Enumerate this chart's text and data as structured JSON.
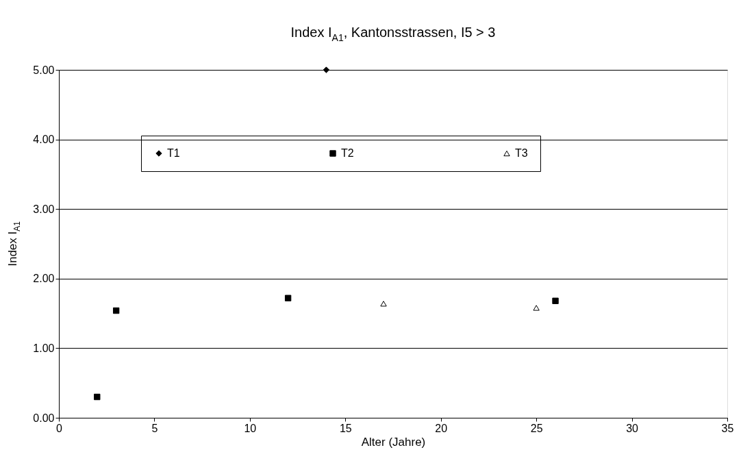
{
  "chart_data": {
    "type": "scatter",
    "title": "Index I$_{A1}$, Kantonsstrassen, I5 > 3",
    "xlabel": "Alter (Jahre)",
    "ylabel": "Index I$_{A1}$",
    "xlim": [
      0,
      35
    ],
    "xticks": [
      0,
      5,
      10,
      15,
      20,
      25,
      30,
      35
    ],
    "ylim": [
      0,
      5
    ],
    "yticks": [
      {
        "value": 0,
        "label": "0.00"
      },
      {
        "value": 1,
        "label": "1.00"
      },
      {
        "value": 2,
        "label": "2.00"
      },
      {
        "value": 3,
        "label": "3.00"
      },
      {
        "value": 4,
        "label": "4.00"
      },
      {
        "value": 5,
        "label": "5.00"
      }
    ],
    "grid": "y",
    "legend": "top",
    "series": [
      {
        "name": "T1",
        "color": "#000000",
        "marker": "diamond",
        "x": [
          14
        ],
        "values": [
          5.0
        ]
      },
      {
        "name": "T2",
        "color": "#000000",
        "marker": "square",
        "x": [
          2,
          3,
          12,
          26
        ],
        "values": [
          0.3,
          1.54,
          1.72,
          1.68
        ]
      },
      {
        "name": "T3",
        "color": "#000000",
        "marker": "triangle",
        "x": [
          17,
          25
        ],
        "values": [
          1.64,
          1.58
        ]
      }
    ]
  }
}
